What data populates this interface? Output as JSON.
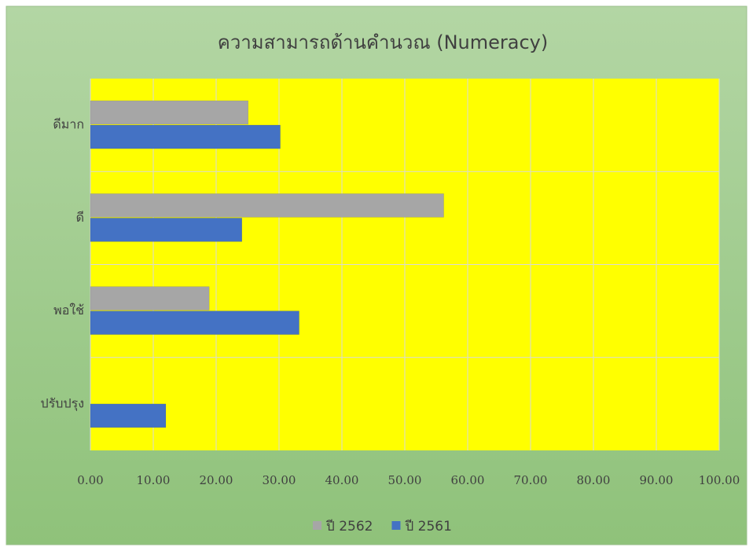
{
  "chart_data": {
    "type": "bar",
    "orientation": "horizontal",
    "title": "ความสามารถด้านคำนวณ (Numeracy)",
    "categories": [
      "ดีมาก",
      "ดี",
      "พอใช้",
      "ปรับปรุง"
    ],
    "series": [
      {
        "name": "ปี 2562",
        "color": "#a6a6a6",
        "values": [
          25.1,
          56.2,
          18.9,
          0
        ]
      },
      {
        "name": "ปี 2561",
        "color": "#4472c4",
        "values": [
          30.2,
          24.1,
          33.2,
          12.0
        ]
      }
    ],
    "xlim": [
      0,
      100
    ],
    "xticks": [
      {
        "value": 0,
        "label": "0.00"
      },
      {
        "value": 10,
        "label": "10.00"
      },
      {
        "value": 20,
        "label": "20.00"
      },
      {
        "value": 30,
        "label": "30.00"
      },
      {
        "value": 40,
        "label": "40.00"
      },
      {
        "value": 50,
        "label": "50.00"
      },
      {
        "value": 60,
        "label": "60.00"
      },
      {
        "value": 70,
        "label": "70.00"
      },
      {
        "value": 80,
        "label": "80.00"
      },
      {
        "value": 90,
        "label": "90.00"
      },
      {
        "value": 100,
        "label": "100.00"
      }
    ],
    "grid": true,
    "legend": "bottom",
    "plot_background": "#ffff00"
  }
}
